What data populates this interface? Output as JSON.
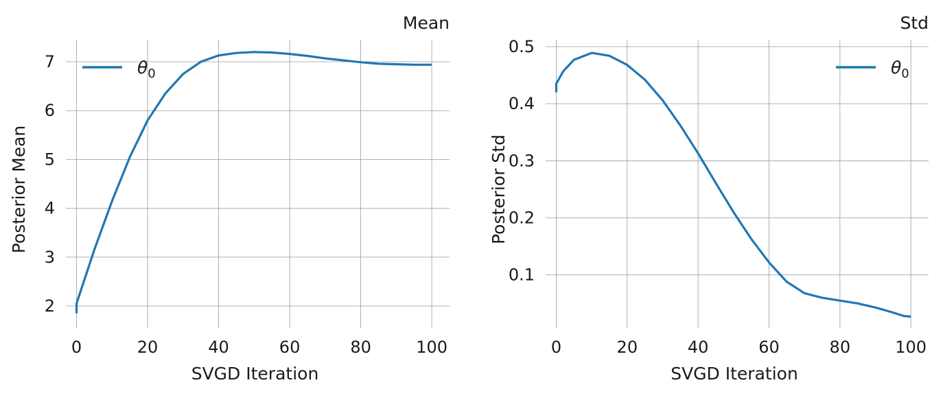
{
  "chart_data": [
    {
      "type": "line",
      "title": "Mean",
      "xlabel": "SVGD Iteration",
      "ylabel": "Posterior Mean",
      "xlim": [
        -3,
        105
      ],
      "ylim": [
        1.55,
        7.45
      ],
      "xticks": [
        0,
        20,
        40,
        60,
        80,
        100
      ],
      "yticks": [
        2,
        3,
        4,
        5,
        6,
        7
      ],
      "grid": true,
      "legend_position": "top-left",
      "colors": {
        "series": "#1f77b4",
        "grid": "#9a9a9a",
        "text": "#1a1a1a"
      },
      "series": [
        {
          "name": "θ0",
          "x": [
            0,
            0,
            5,
            10,
            15,
            20,
            25,
            30,
            35,
            40,
            45,
            50,
            55,
            60,
            65,
            70,
            75,
            80,
            85,
            90,
            95,
            100
          ],
          "y": [
            1.85,
            2.05,
            3.15,
            4.15,
            5.05,
            5.8,
            6.35,
            6.75,
            7.0,
            7.13,
            7.18,
            7.2,
            7.19,
            7.16,
            7.12,
            7.07,
            7.03,
            6.99,
            6.96,
            6.95,
            6.94,
            6.94
          ]
        }
      ]
    },
    {
      "type": "line",
      "title": "Std",
      "xlabel": "SVGD Iteration",
      "ylabel": "Posterior Std",
      "xlim": [
        -3,
        105
      ],
      "ylim": [
        0.007,
        0.512
      ],
      "xticks": [
        0,
        20,
        40,
        60,
        80,
        100
      ],
      "yticks": [
        0.1,
        0.2,
        0.3,
        0.4,
        0.5
      ],
      "ytick_labels": [
        "0.1",
        "0.2",
        "0.3",
        "0.4",
        "0.5"
      ],
      "grid": true,
      "legend_position": "top-right",
      "colors": {
        "series": "#1f77b4",
        "grid": "#9a9a9a",
        "text": "#1a1a1a"
      },
      "series": [
        {
          "name": "θ0",
          "x": [
            0,
            0,
            2,
            5,
            10,
            15,
            20,
            25,
            30,
            35,
            40,
            45,
            50,
            55,
            60,
            65,
            70,
            75,
            80,
            85,
            90,
            95,
            98,
            100
          ],
          "y": [
            0.42,
            0.435,
            0.457,
            0.477,
            0.489,
            0.484,
            0.468,
            0.442,
            0.406,
            0.362,
            0.313,
            0.261,
            0.21,
            0.163,
            0.122,
            0.088,
            0.068,
            0.06,
            0.055,
            0.05,
            0.043,
            0.034,
            0.028,
            0.027
          ]
        }
      ]
    }
  ]
}
